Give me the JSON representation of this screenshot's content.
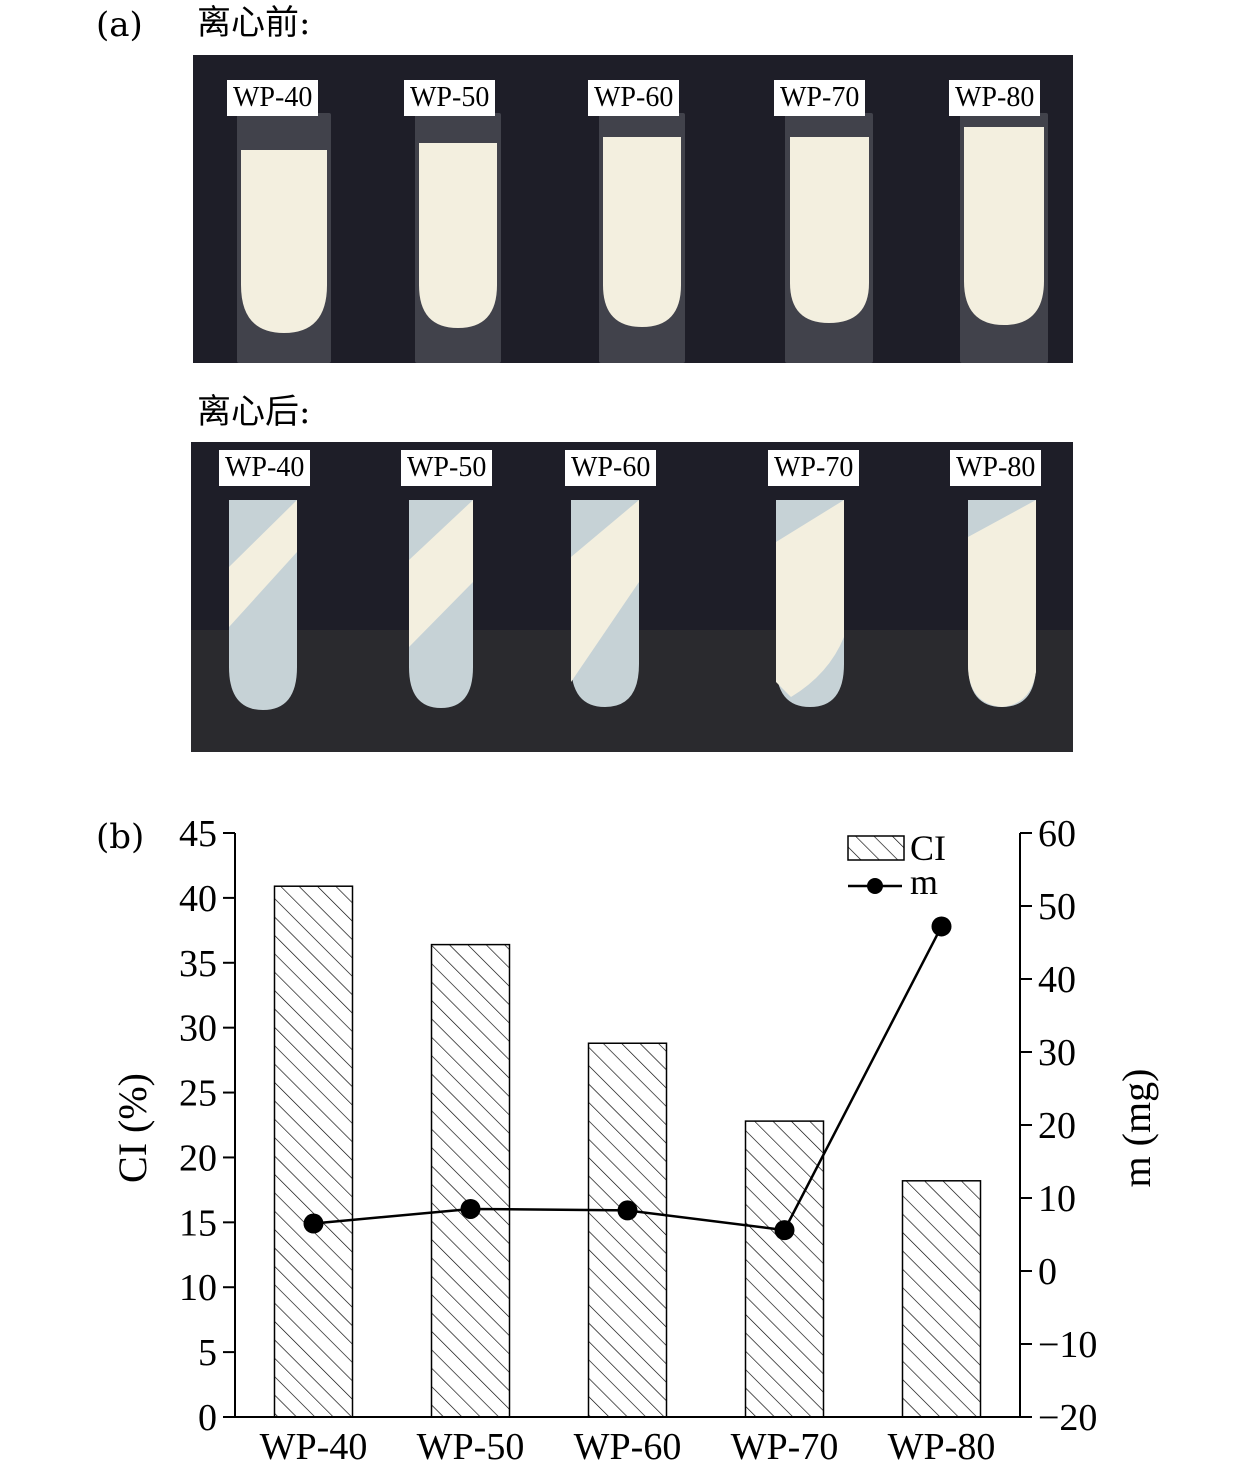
{
  "panel_a": {
    "label": "(a)",
    "before": {
      "title": "离心前:",
      "tubes": [
        "WP-40",
        "WP-50",
        "WP-60",
        "WP-70",
        "WP-80"
      ]
    },
    "after": {
      "title": "离心后:",
      "tubes": [
        "WP-40",
        "WP-50",
        "WP-60",
        "WP-70",
        "WP-80"
      ]
    }
  },
  "panel_b": {
    "label": "(b)"
  },
  "colors": {
    "photo_background": "#1e1e28",
    "emulsion": "#f3efdf",
    "serum": "#c6d2d6"
  },
  "chart_data": {
    "type": "bar",
    "categories": [
      "WP-40",
      "WP-50",
      "WP-60",
      "WP-70",
      "WP-80"
    ],
    "series": [
      {
        "name": "CI",
        "type": "bar",
        "axis": "left",
        "pattern": "diagonal-hatch",
        "values": [
          40.9,
          36.4,
          28.8,
          22.8,
          18.2
        ]
      },
      {
        "name": "m",
        "type": "line",
        "axis": "right",
        "marker": "filled-circle",
        "values": [
          6.5,
          8.5,
          8.3,
          5.6,
          47.2
        ]
      }
    ],
    "ylabel": "CI (%)",
    "y2label": "m (mg)",
    "ylim": [
      0,
      45
    ],
    "y2lim": [
      -20,
      60
    ],
    "yticks": [
      "0",
      "5",
      "10",
      "15",
      "20",
      "25",
      "30",
      "35",
      "40",
      "45"
    ],
    "y2ticks": [
      "−20",
      "−10",
      "0",
      "10",
      "20",
      "30",
      "40",
      "50",
      "60"
    ],
    "legend": {
      "position": "top-right",
      "entries": [
        "CI",
        "m"
      ]
    },
    "grid": false
  }
}
